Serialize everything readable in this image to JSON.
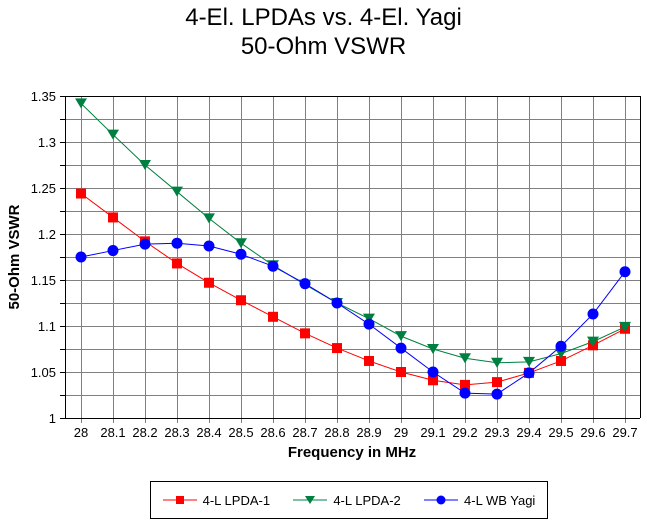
{
  "chart_data": {
    "type": "line",
    "title": "4-El. LPDAs vs. 4-El. Yagi",
    "subtitle": "50-Ohm VSWR",
    "xlabel": "Frequency in MHz",
    "ylabel": "50-Ohm VSWR",
    "x": [
      28,
      28.1,
      28.2,
      28.3,
      28.4,
      28.5,
      28.6,
      28.7,
      28.8,
      28.9,
      29,
      29.1,
      29.2,
      29.3,
      29.4,
      29.5,
      29.6,
      29.7
    ],
    "x_tick_labels": [
      "28",
      "28.1",
      "28.2",
      "28.3",
      "28.4",
      "28.5",
      "28.6",
      "28.7",
      "28.8",
      "28.9",
      "29",
      "29.1",
      "29.2",
      "29.3",
      "29.4",
      "29.5",
      "29.6",
      "29.7"
    ],
    "ylim": [
      1,
      1.35
    ],
    "y_ticks": [
      1,
      1.05,
      1.1,
      1.15,
      1.2,
      1.25,
      1.3,
      1.35
    ],
    "y_tick_labels": [
      "1",
      "1.05",
      "1.1",
      "1.15",
      "1.2",
      "1.25",
      "1.3",
      "1.35"
    ],
    "y_minor_step": 0.025,
    "grid": true,
    "legend_position": "bottom",
    "series": [
      {
        "name": "4-L LPDA-1",
        "color": "#ff0000",
        "marker": "square",
        "values": [
          1.244,
          1.218,
          1.192,
          1.168,
          1.147,
          1.128,
          1.11,
          1.092,
          1.076,
          1.062,
          1.05,
          1.041,
          1.036,
          1.039,
          1.049,
          1.062,
          1.079,
          1.097
        ]
      },
      {
        "name": "4-L LPDA-2",
        "color": "#008040",
        "marker": "triangle-down",
        "values": [
          1.342,
          1.308,
          1.275,
          1.246,
          1.217,
          1.19,
          1.166,
          1.145,
          1.125,
          1.108,
          1.089,
          1.075,
          1.065,
          1.06,
          1.061,
          1.07,
          1.083,
          1.099
        ]
      },
      {
        "name": "4-L WB Yagi",
        "color": "#0000ff",
        "marker": "circle",
        "values": [
          1.175,
          1.182,
          1.189,
          1.19,
          1.187,
          1.178,
          1.165,
          1.146,
          1.125,
          1.102,
          1.076,
          1.05,
          1.027,
          1.026,
          1.049,
          1.078,
          1.113,
          1.159
        ]
      }
    ]
  }
}
